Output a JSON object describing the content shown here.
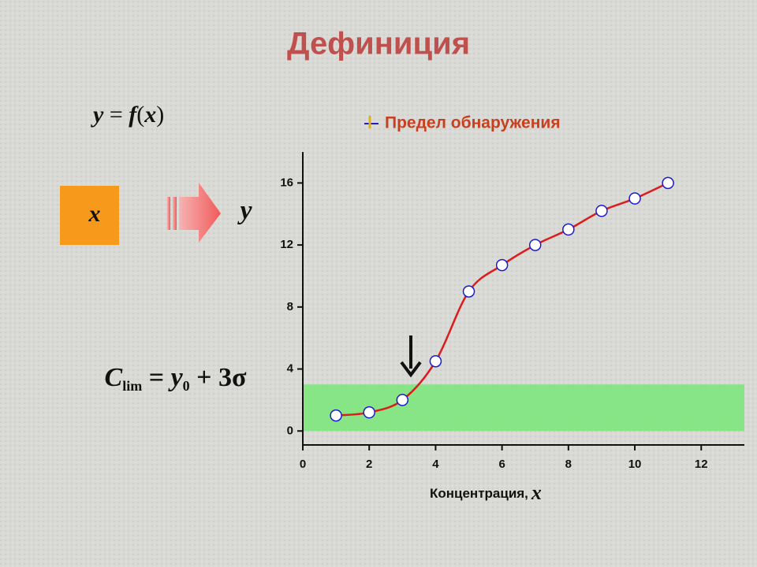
{
  "title": "Дефиниция",
  "formula_1": [
    "y",
    " = ",
    "f",
    "(",
    "x",
    ")"
  ],
  "input_box": "x",
  "output": "y",
  "formula_2": [
    "C",
    "lim",
    " = ",
    "y",
    "0",
    " + 3σ"
  ],
  "chart_data": {
    "type": "line",
    "x": [
      1,
      2,
      3,
      4,
      5,
      6,
      7,
      8,
      9,
      10,
      11
    ],
    "series": [
      {
        "name": "Предел обнаружения",
        "color": "#dd1c1c",
        "values": [
          1,
          1.2,
          2,
          4.5,
          9,
          10.7,
          12,
          13,
          14.2,
          15,
          16
        ]
      }
    ],
    "band": [
      0,
      3
    ],
    "xlim": [
      0,
      13.3
    ],
    "xticks": [
      0,
      2,
      4,
      6,
      8,
      10,
      12
    ],
    "ylim": [
      -0.9,
      18
    ],
    "yticks": [
      0,
      4,
      8,
      12,
      16
    ],
    "xlabel": [
      "Концентрация,",
      "x"
    ]
  }
}
